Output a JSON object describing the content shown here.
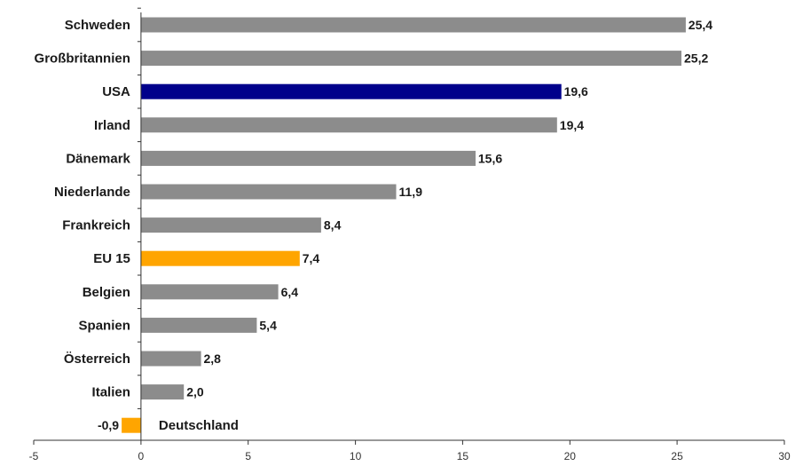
{
  "chart_data": {
    "type": "bar",
    "orientation": "horizontal",
    "categories": [
      "Schweden",
      "Großbritannien",
      "USA",
      "Irland",
      "Dänemark",
      "Niederlande",
      "Frankreich",
      "EU 15",
      "Belgien",
      "Spanien",
      "Österreich",
      "Italien",
      "Deutschland"
    ],
    "values": [
      25.4,
      25.2,
      19.6,
      19.4,
      15.6,
      11.9,
      8.4,
      7.4,
      6.4,
      5.4,
      2.8,
      2.0,
      -0.9
    ],
    "value_labels": [
      "25,4",
      "25,2",
      "19,6",
      "19,4",
      "15,6",
      "11,9",
      "8,4",
      "7,4",
      "6,4",
      "5,4",
      "2,8",
      "2,0",
      "-0,9"
    ],
    "bar_colors": [
      "#8c8c8c",
      "#8c8c8c",
      "#00008b",
      "#8c8c8c",
      "#8c8c8c",
      "#8c8c8c",
      "#8c8c8c",
      "#ffa500",
      "#8c8c8c",
      "#8c8c8c",
      "#8c8c8c",
      "#8c8c8c",
      "#ffa500"
    ],
    "xlim": [
      -5,
      30
    ],
    "xticks": [
      -5,
      0,
      5,
      10,
      15,
      20,
      25,
      30
    ],
    "title": "",
    "xlabel": "",
    "ylabel": "",
    "grid": false,
    "legend": "none"
  }
}
